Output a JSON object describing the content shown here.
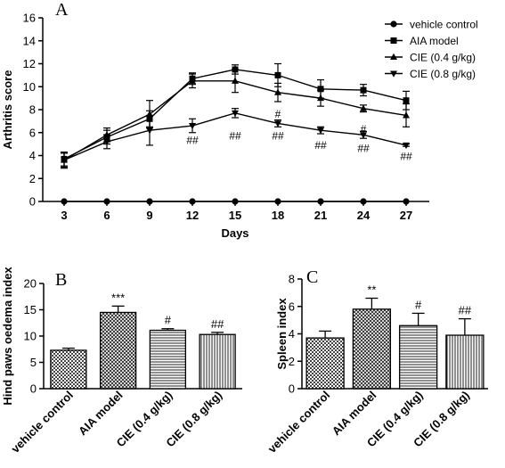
{
  "chart_data": [
    {
      "panel": "A",
      "type": "line",
      "xlabel": "Days",
      "ylabel": "Arthritis score",
      "x": [
        3,
        6,
        9,
        12,
        15,
        18,
        21,
        24,
        27
      ],
      "ylim": [
        0,
        16
      ],
      "yticks": [
        0,
        2,
        4,
        6,
        8,
        10,
        12,
        14,
        16
      ],
      "legend_position": "top-right",
      "series": [
        {
          "name": "vehicle control",
          "marker": "circle",
          "values": [
            0,
            0,
            0,
            0,
            0,
            0,
            0,
            0,
            0
          ],
          "err": [
            0,
            0,
            0,
            0,
            0,
            0,
            0,
            0,
            0
          ]
        },
        {
          "name": "AIA model",
          "marker": "square",
          "values": [
            3.7,
            5.6,
            7.2,
            10.7,
            11.5,
            11.0,
            9.8,
            9.7,
            8.8
          ],
          "err": [
            0.6,
            0.6,
            0.7,
            0.5,
            0.4,
            1.0,
            0.8,
            0.5,
            0.8
          ]
        },
        {
          "name": "CIE (0.4 g/kg)",
          "marker": "triangle-up",
          "values": [
            3.6,
            5.8,
            7.6,
            10.5,
            10.5,
            9.5,
            9.0,
            8.1,
            7.5
          ],
          "err": [
            0.6,
            0.6,
            1.2,
            0.6,
            1.0,
            0.8,
            0.7,
            0.3,
            1.0
          ]
        },
        {
          "name": "CIE (0.8 g/kg)",
          "marker": "triangle-down",
          "values": [
            3.6,
            5.2,
            6.2,
            6.6,
            7.7,
            6.8,
            6.2,
            5.8,
            4.9
          ],
          "err": [
            0.7,
            0.6,
            1.3,
            0.6,
            0.4,
            0.3,
            0.3,
            0.3,
            0.1
          ]
        }
      ],
      "annotations": [
        {
          "x": 12,
          "y": 5.0,
          "text": "##"
        },
        {
          "x": 15,
          "y": 5.4,
          "text": "##"
        },
        {
          "x": 18,
          "y": 7.3,
          "text": "#"
        },
        {
          "x": 18,
          "y": 5.4,
          "text": "##"
        },
        {
          "x": 21,
          "y": 4.6,
          "text": "##"
        },
        {
          "x": 24,
          "y": 6.0,
          "text": "#"
        },
        {
          "x": 24,
          "y": 4.3,
          "text": "##"
        },
        {
          "x": 27,
          "y": 3.6,
          "text": "##"
        }
      ]
    },
    {
      "panel": "B",
      "type": "bar",
      "ylabel": "Hind paws oedema index",
      "ylim": [
        0,
        20
      ],
      "yticks": [
        0,
        5,
        10,
        15,
        20
      ],
      "categories": [
        "vehicle control",
        "AIA model",
        "CIE (0.4 g/kg)",
        "CIE (0.8 g/kg)"
      ],
      "values": [
        7.3,
        14.5,
        11.1,
        10.3
      ],
      "err": [
        0.4,
        1.2,
        0.3,
        0.4
      ],
      "labels": [
        "",
        "***",
        "#",
        "##"
      ],
      "patterns": [
        "checker",
        "crosshatch",
        "horizontal",
        "vertical"
      ]
    },
    {
      "panel": "C",
      "type": "bar",
      "ylabel": "Spleen index",
      "ylim": [
        0,
        8
      ],
      "yticks": [
        0,
        2,
        4,
        6,
        8
      ],
      "categories": [
        "vehicle control",
        "AIA model",
        "CIE (0.4 g/kg)",
        "CIE (0.8 g/kg)"
      ],
      "values": [
        3.7,
        5.8,
        4.6,
        3.9
      ],
      "err": [
        0.5,
        0.8,
        0.9,
        1.2
      ],
      "labels": [
        "",
        "**",
        "#",
        "##"
      ],
      "patterns": [
        "checker",
        "crosshatch",
        "horizontal",
        "vertical"
      ]
    }
  ]
}
